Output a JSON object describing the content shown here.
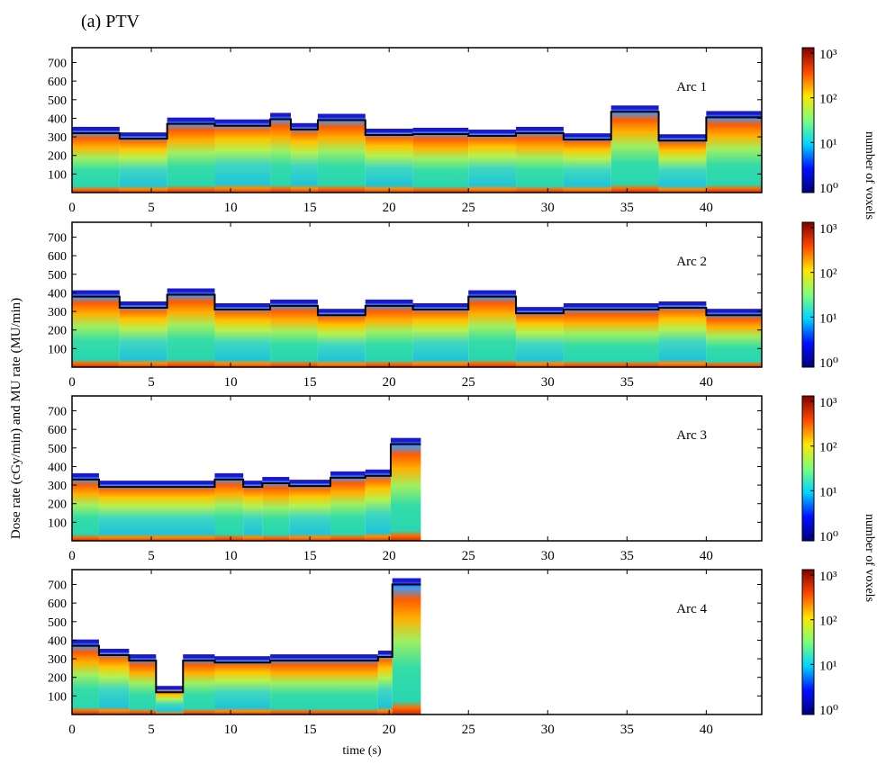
{
  "figure": {
    "title": "(a) PTV",
    "ylabel": "Dose rate (cGy/min) and MU rate (MU/min)",
    "xlabel": "time (s)",
    "colorbar_label": "number of voxels",
    "colorbar_ticks": [
      "10^0",
      "10^1",
      "10^2",
      "10^3"
    ],
    "colorbar_colors": [
      "#00007f",
      "#0010ff",
      "#00d4ff",
      "#7dff7a",
      "#ffe600",
      "#ff4800",
      "#7f0000"
    ]
  },
  "chart_data": [
    {
      "type": "heatmap",
      "title": "Arc 1",
      "xlim": [
        0,
        43.5
      ],
      "ylim": [
        0,
        780
      ],
      "xticks": [
        0,
        5,
        10,
        15,
        20,
        25,
        30,
        35,
        40
      ],
      "yticks": [
        100,
        200,
        300,
        400,
        500,
        600,
        700
      ],
      "colorbar": "log",
      "mu_rate_steps": [
        [
          0,
          3,
          320
        ],
        [
          3,
          6,
          290
        ],
        [
          6,
          9,
          370
        ],
        [
          9,
          12.5,
          360
        ],
        [
          12.5,
          13.8,
          395
        ],
        [
          13.8,
          15.5,
          340
        ],
        [
          15.5,
          18.5,
          390
        ],
        [
          18.5,
          21.5,
          310
        ],
        [
          21.5,
          25,
          315
        ],
        [
          25,
          28,
          305
        ],
        [
          28,
          31,
          320
        ],
        [
          31,
          34,
          285
        ],
        [
          34,
          37,
          435
        ],
        [
          37,
          40,
          280
        ],
        [
          40,
          43.5,
          405
        ]
      ]
    },
    {
      "type": "heatmap",
      "title": "Arc 2",
      "xlim": [
        0,
        43.5
      ],
      "ylim": [
        0,
        780
      ],
      "xticks": [
        0,
        5,
        10,
        15,
        20,
        25,
        30,
        35,
        40
      ],
      "yticks": [
        100,
        200,
        300,
        400,
        500,
        600,
        700
      ],
      "colorbar": "log",
      "mu_rate_steps": [
        [
          0,
          3,
          380
        ],
        [
          3,
          6,
          320
        ],
        [
          6,
          9,
          390
        ],
        [
          9,
          12.5,
          310
        ],
        [
          12.5,
          15.5,
          330
        ],
        [
          15.5,
          18.5,
          280
        ],
        [
          18.5,
          21.5,
          330
        ],
        [
          21.5,
          25,
          310
        ],
        [
          25,
          28,
          380
        ],
        [
          28,
          31,
          290
        ],
        [
          31,
          37,
          310
        ],
        [
          37,
          40,
          320
        ],
        [
          40,
          43.5,
          280
        ]
      ]
    },
    {
      "type": "heatmap",
      "title": "Arc 3",
      "xlim": [
        0,
        43.5
      ],
      "ylim": [
        0,
        780
      ],
      "xticks": [
        0,
        5,
        10,
        15,
        20,
        25,
        30,
        35,
        40
      ],
      "yticks": [
        100,
        200,
        300,
        400,
        500,
        600,
        700
      ],
      "colorbar": "log",
      "mu_rate_steps": [
        [
          0,
          1.7,
          330
        ],
        [
          1.7,
          9,
          290
        ],
        [
          9,
          10.8,
          330
        ],
        [
          10.8,
          12,
          290
        ],
        [
          12,
          13.7,
          310
        ],
        [
          13.7,
          16.3,
          295
        ],
        [
          16.3,
          18.5,
          340
        ],
        [
          18.5,
          20.1,
          350
        ],
        [
          20.1,
          22,
          520
        ]
      ]
    },
    {
      "type": "heatmap",
      "title": "Arc 4",
      "xlim": [
        0,
        43.5
      ],
      "ylim": [
        0,
        780
      ],
      "xticks": [
        0,
        5,
        10,
        15,
        20,
        25,
        30,
        35,
        40
      ],
      "yticks": [
        100,
        200,
        300,
        400,
        500,
        600,
        700
      ],
      "colorbar": "log",
      "mu_rate_steps": [
        [
          0,
          1.7,
          370
        ],
        [
          1.7,
          3.6,
          320
        ],
        [
          3.6,
          5.3,
          290
        ],
        [
          5.3,
          7,
          120
        ],
        [
          7,
          9,
          290
        ],
        [
          9,
          12.5,
          280
        ],
        [
          12.5,
          19.3,
          290
        ],
        [
          19.3,
          20.2,
          310
        ],
        [
          20.2,
          22,
          700
        ]
      ]
    }
  ]
}
